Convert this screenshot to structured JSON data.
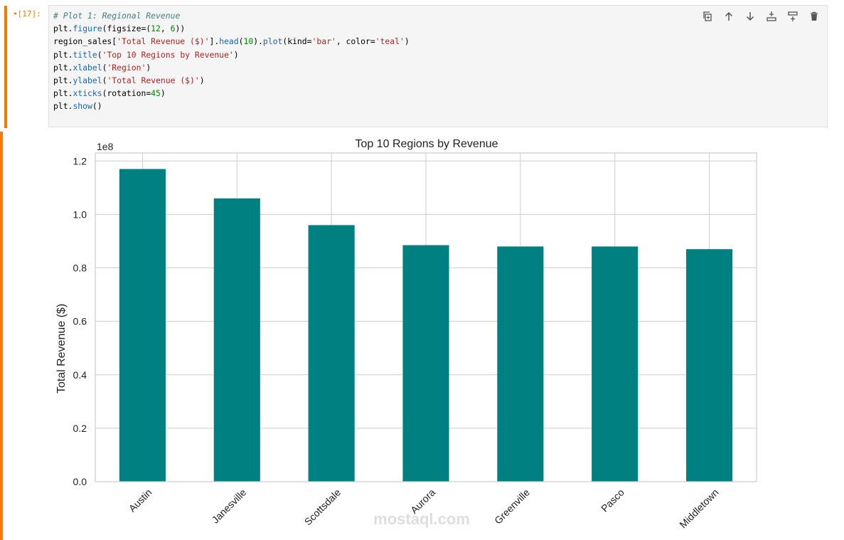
{
  "cell": {
    "prompt": "•[17]:",
    "code_lines": [
      [
        {
          "t": "# Plot 1: Regional Revenue",
          "k": "c"
        }
      ],
      [
        {
          "t": "plt.",
          "k": ""
        },
        {
          "t": "figure",
          "k": "f"
        },
        {
          "t": "(figsize=(",
          "k": ""
        },
        {
          "t": "12",
          "k": "n"
        },
        {
          "t": ", ",
          "k": ""
        },
        {
          "t": "6",
          "k": "n"
        },
        {
          "t": "))",
          "k": ""
        }
      ],
      [
        {
          "t": "region_sales[",
          "k": ""
        },
        {
          "t": "'Total Revenue ($)'",
          "k": "s"
        },
        {
          "t": "].",
          "k": ""
        },
        {
          "t": "head",
          "k": "f"
        },
        {
          "t": "(",
          "k": ""
        },
        {
          "t": "10",
          "k": "n"
        },
        {
          "t": ").",
          "k": ""
        },
        {
          "t": "plot",
          "k": "f"
        },
        {
          "t": "(kind=",
          "k": ""
        },
        {
          "t": "'bar'",
          "k": "s"
        },
        {
          "t": ", color=",
          "k": ""
        },
        {
          "t": "'teal'",
          "k": "s"
        },
        {
          "t": ")",
          "k": ""
        }
      ],
      [
        {
          "t": "plt.",
          "k": ""
        },
        {
          "t": "title",
          "k": "f"
        },
        {
          "t": "(",
          "k": ""
        },
        {
          "t": "'Top 10 Regions by Revenue'",
          "k": "s"
        },
        {
          "t": ")",
          "k": ""
        }
      ],
      [
        {
          "t": "plt.",
          "k": ""
        },
        {
          "t": "xlabel",
          "k": "f"
        },
        {
          "t": "(",
          "k": ""
        },
        {
          "t": "'Region'",
          "k": "s"
        },
        {
          "t": ")",
          "k": ""
        }
      ],
      [
        {
          "t": "plt.",
          "k": ""
        },
        {
          "t": "ylabel",
          "k": "f"
        },
        {
          "t": "(",
          "k": ""
        },
        {
          "t": "'Total Revenue ($)'",
          "k": "s"
        },
        {
          "t": ")",
          "k": ""
        }
      ],
      [
        {
          "t": "plt.",
          "k": ""
        },
        {
          "t": "xticks",
          "k": "f"
        },
        {
          "t": "(rotation=",
          "k": ""
        },
        {
          "t": "45",
          "k": "n"
        },
        {
          "t": ")",
          "k": ""
        }
      ],
      [
        {
          "t": "plt.",
          "k": ""
        },
        {
          "t": "show",
          "k": "f"
        },
        {
          "t": "()",
          "k": ""
        }
      ]
    ]
  },
  "toolbar": {
    "buttons": [
      "duplicate-icon",
      "arrow-up-icon",
      "arrow-down-icon",
      "insert-above-icon",
      "insert-below-icon",
      "delete-icon"
    ]
  },
  "chart_data": {
    "type": "bar",
    "title": "Top 10 Regions by Revenue",
    "ylabel": "Total Revenue ($)",
    "xlabel": "",
    "offset_text": "1e8",
    "categories": [
      "Austin",
      "Janesville",
      "Scottsdale",
      "Aurora",
      "Greenville",
      "Pasco",
      "Middletown"
    ],
    "values": [
      1.17,
      1.06,
      0.96,
      0.885,
      0.88,
      0.88,
      0.87
    ],
    "yticks": [
      "0.0",
      "0.2",
      "0.4",
      "0.6",
      "0.8",
      "1.0",
      "1.2"
    ],
    "ylim": [
      0,
      1.23
    ],
    "grid": true,
    "bar_color": "#008080",
    "grid_color": "#cccccc"
  },
  "watermark": {
    "text": "mostaql.com"
  }
}
